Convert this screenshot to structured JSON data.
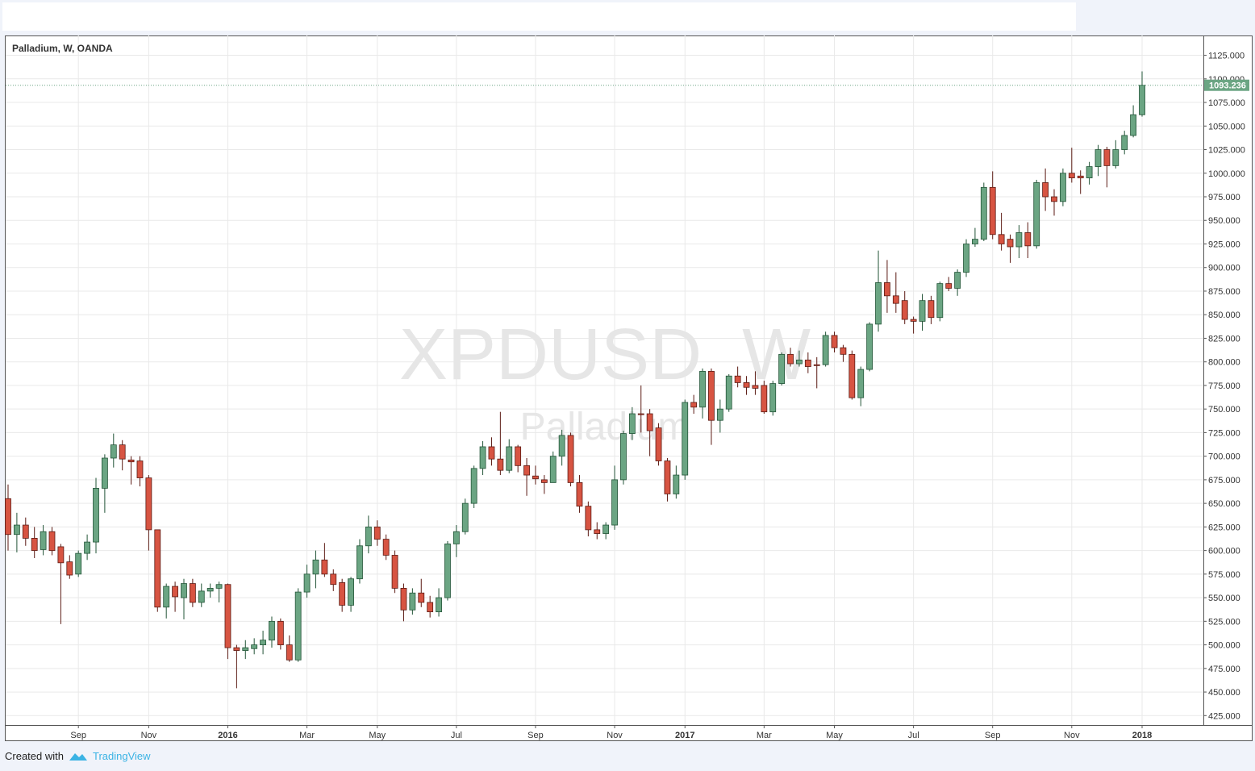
{
  "chart_data": {
    "type": "candlestick",
    "title": "Palladium, W, OANDA",
    "watermark": "XPDUSD, W",
    "watermark_subtitle": "Palladium",
    "footer": {
      "prefix": "Created with",
      "brand": "TradingView"
    },
    "up_color": "#6ba583",
    "down_color": "#d75442",
    "up_border": "#225437",
    "down_border": "#5b1a13",
    "grid": true,
    "categories": [
      null,
      null,
      null,
      null,
      null,
      null,
      null,
      null,
      "Sep",
      null,
      null,
      null,
      null,
      null,
      null,
      null,
      "Nov",
      null,
      null,
      null,
      null,
      null,
      null,
      null,
      null,
      "2016",
      null,
      null,
      null,
      null,
      null,
      null,
      null,
      null,
      "Mar",
      null,
      null,
      null,
      null,
      null,
      null,
      null,
      "May",
      null,
      null,
      null,
      null,
      null,
      null,
      null,
      null,
      "Jul",
      null,
      null,
      null,
      null,
      null,
      null,
      null,
      null,
      "Sep",
      null,
      null,
      null,
      null,
      null,
      null,
      null,
      null,
      "Nov",
      null,
      null,
      null,
      null,
      null,
      null,
      null,
      "2017",
      null,
      null,
      null,
      null,
      null,
      null,
      null,
      null,
      "Mar",
      null,
      null,
      null,
      null,
      null,
      null,
      null,
      "May",
      null,
      null,
      null,
      null,
      null,
      null,
      null,
      null,
      "Jul",
      null,
      null,
      null,
      null,
      null,
      null,
      null,
      null,
      "Sep",
      null,
      null,
      null,
      null,
      null,
      null,
      null,
      null,
      "Nov",
      null,
      null,
      null,
      null,
      null,
      null,
      null,
      "2018"
    ],
    "open": [
      655,
      617,
      627,
      613,
      601,
      620,
      604,
      588,
      575,
      597,
      609,
      666,
      698,
      712,
      696,
      695,
      677,
      622,
      540,
      562,
      550,
      565,
      545,
      557,
      560,
      564,
      497,
      494,
      496,
      500,
      505,
      525,
      500,
      484,
      556,
      575,
      590,
      575,
      566,
      542,
      570,
      605,
      625,
      612,
      595,
      560,
      537,
      555,
      545,
      535,
      550,
      607,
      620,
      650,
      687,
      710,
      697,
      685,
      710,
      690,
      679,
      675,
      672,
      700,
      722,
      672,
      647,
      622,
      618,
      627,
      675,
      724,
      745,
      745,
      730,
      695,
      660,
      680,
      757,
      752,
      790,
      738,
      750,
      785,
      778,
      775,
      775,
      747,
      777,
      808,
      798,
      802,
      797,
      797,
      828,
      815,
      808,
      762,
      792,
      840,
      884,
      870,
      865,
      845,
      843,
      865,
      847,
      883,
      878,
      895,
      925,
      930,
      985,
      935,
      930,
      922,
      937,
      923,
      990,
      975,
      970,
      1000,
      997,
      995,
      1007,
      1025,
      1008,
      1025,
      1040,
      1062
    ],
    "high": [
      670,
      640,
      635,
      625,
      627,
      625,
      607,
      595,
      600,
      617,
      677,
      702,
      724,
      717,
      700,
      700,
      680,
      622,
      565,
      567,
      570,
      570,
      565,
      565,
      567,
      565,
      500,
      505,
      507,
      515,
      530,
      528,
      510,
      560,
      585,
      600,
      608,
      580,
      570,
      572,
      612,
      637,
      632,
      617,
      600,
      565,
      560,
      570,
      552,
      560,
      610,
      627,
      655,
      690,
      716,
      720,
      747,
      718,
      712,
      698,
      690,
      680,
      705,
      728,
      725,
      680,
      652,
      630,
      630,
      690,
      727,
      752,
      775,
      750,
      735,
      698,
      690,
      760,
      765,
      793,
      793,
      760,
      787,
      795,
      785,
      790,
      780,
      780,
      810,
      815,
      812,
      810,
      805,
      832,
      832,
      818,
      812,
      795,
      842,
      918,
      908,
      895,
      875,
      848,
      872,
      870,
      885,
      890,
      898,
      930,
      942,
      990,
      1002,
      958,
      935,
      945,
      948,
      993,
      1005,
      983,
      1005,
      1027,
      1003,
      1012,
      1030,
      1028,
      1035,
      1045,
      1072,
      1108
    ],
    "low": [
      600,
      598,
      605,
      592,
      595,
      595,
      522,
      570,
      572,
      590,
      597,
      640,
      688,
      685,
      670,
      668,
      600,
      535,
      528,
      535,
      527,
      540,
      540,
      550,
      545,
      485,
      454,
      485,
      490,
      490,
      497,
      495,
      482,
      482,
      550,
      560,
      572,
      557,
      535,
      535,
      565,
      597,
      605,
      590,
      555,
      525,
      532,
      540,
      529,
      530,
      547,
      593,
      617,
      645,
      680,
      690,
      680,
      682,
      683,
      658,
      670,
      660,
      672,
      690,
      668,
      640,
      615,
      612,
      612,
      622,
      670,
      717,
      725,
      700,
      690,
      652,
      655,
      675,
      745,
      740,
      712,
      725,
      747,
      773,
      765,
      765,
      745,
      743,
      775,
      795,
      795,
      788,
      772,
      795,
      810,
      800,
      760,
      753,
      790,
      832,
      852,
      852,
      840,
      830,
      833,
      840,
      843,
      875,
      870,
      890,
      922,
      928,
      930,
      918,
      905,
      910,
      910,
      920,
      960,
      955,
      965,
      990,
      978,
      988,
      997,
      985,
      1005,
      1020,
      1038,
      1060
    ],
    "close": [
      617,
      627,
      613,
      600,
      620,
      600,
      587,
      574,
      597,
      609,
      666,
      698,
      712,
      697,
      694,
      677,
      622,
      540,
      562,
      551,
      565,
      545,
      557,
      560,
      564,
      497,
      494,
      497,
      500,
      505,
      525,
      500,
      484,
      556,
      575,
      590,
      575,
      564,
      542,
      570,
      605,
      625,
      612,
      595,
      560,
      537,
      555,
      545,
      535,
      550,
      607,
      620,
      650,
      687,
      710,
      697,
      685,
      710,
      690,
      680,
      676,
      672,
      700,
      722,
      672,
      647,
      622,
      618,
      627,
      675,
      724,
      745,
      744,
      727,
      695,
      660,
      680,
      757,
      752,
      790,
      738,
      750,
      785,
      778,
      773,
      772,
      747,
      777,
      808,
      798,
      802,
      795,
      796,
      828,
      815,
      808,
      762,
      792,
      840,
      884,
      870,
      862,
      845,
      843,
      865,
      847,
      883,
      878,
      895,
      925,
      930,
      985,
      935,
      925,
      922,
      937,
      923,
      990,
      975,
      970,
      1000,
      995,
      995,
      1007,
      1025,
      1008,
      1025,
      1040,
      1062,
      1093.236
    ],
    "ylim": [
      415,
      1146
    ],
    "yticks": [
      {
        "value": 425,
        "label": "425.000"
      },
      {
        "value": 450,
        "label": "450.000"
      },
      {
        "value": 475,
        "label": "475.000"
      },
      {
        "value": 500,
        "label": "500.000"
      },
      {
        "value": 525,
        "label": "525.000"
      },
      {
        "value": 550,
        "label": "550.000"
      },
      {
        "value": 575,
        "label": "575.000"
      },
      {
        "value": 600,
        "label": "600.000"
      },
      {
        "value": 625,
        "label": "625.000"
      },
      {
        "value": 650,
        "label": "650.000"
      },
      {
        "value": 675,
        "label": "675.000"
      },
      {
        "value": 700,
        "label": "700.000"
      },
      {
        "value": 725,
        "label": "725.000"
      },
      {
        "value": 750,
        "label": "750.000"
      },
      {
        "value": 775,
        "label": "775.000"
      },
      {
        "value": 800,
        "label": "800.000"
      },
      {
        "value": 825,
        "label": "825.000"
      },
      {
        "value": 850,
        "label": "850.000"
      },
      {
        "value": 875,
        "label": "875.000"
      },
      {
        "value": 900,
        "label": "900.000"
      },
      {
        "value": 925,
        "label": "925.000"
      },
      {
        "value": 950,
        "label": "950.000"
      },
      {
        "value": 975,
        "label": "975.000"
      },
      {
        "value": 1000,
        "label": "1000.000"
      },
      {
        "value": 1025,
        "label": "1025.000"
      },
      {
        "value": 1050,
        "label": "1050.000"
      },
      {
        "value": 1075,
        "label": "1075.000"
      },
      {
        "value": 1100,
        "label": "1100.000"
      },
      {
        "value": 1125,
        "label": "1125.000"
      }
    ]
  }
}
